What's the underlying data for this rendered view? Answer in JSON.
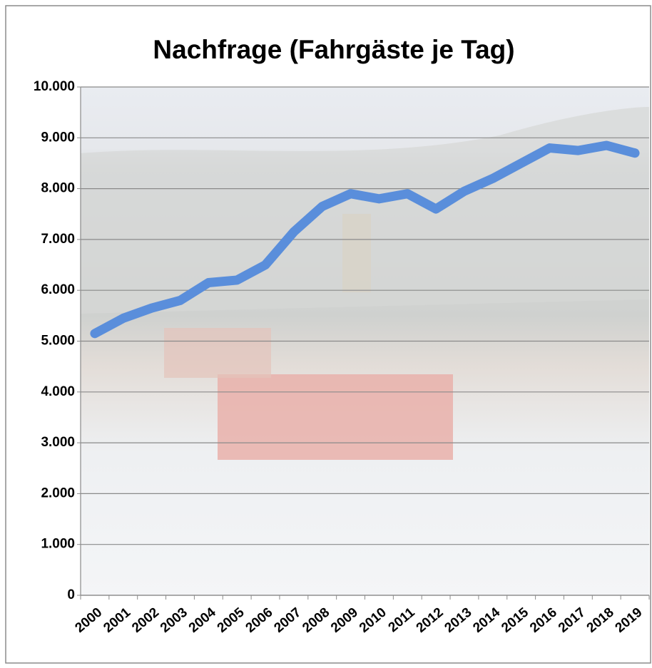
{
  "chart_data": {
    "type": "line",
    "title": "Nachfrage (Fahrgäste je Tag)",
    "categories": [
      "2000",
      "2001",
      "2002",
      "2003",
      "2004",
      "2005",
      "2006",
      "2007",
      "2008",
      "2009",
      "2010",
      "2011",
      "2012",
      "2013",
      "2014",
      "2015",
      "2016",
      "2017",
      "2018",
      "2019"
    ],
    "series": [
      {
        "name": "Fahrgäste je Tag",
        "color": "#5a8edb",
        "values": [
          5150,
          5450,
          5650,
          5800,
          6150,
          6200,
          6500,
          7150,
          7650,
          7900,
          7800,
          7900,
          7600,
          7950,
          8200,
          8500,
          8800,
          8750,
          8850,
          8700
        ]
      }
    ],
    "ylim": [
      0,
      10000
    ],
    "yticks": [
      0,
      {
        "value": 1000,
        "label": "1.000"
      },
      {
        "value": 2000,
        "label": "2.000"
      },
      {
        "value": 3000,
        "label": "3.000"
      },
      {
        "value": 4000,
        "label": "4.000"
      },
      {
        "value": 5000,
        "label": "5.000"
      },
      {
        "value": 6000,
        "label": "6.000"
      },
      {
        "value": 7000,
        "label": "7.000"
      },
      {
        "value": 8000,
        "label": "8.000"
      },
      {
        "value": 9000,
        "label": "9.000"
      },
      {
        "value": 10000,
        "label": "10.000"
      }
    ],
    "grid": true
  }
}
